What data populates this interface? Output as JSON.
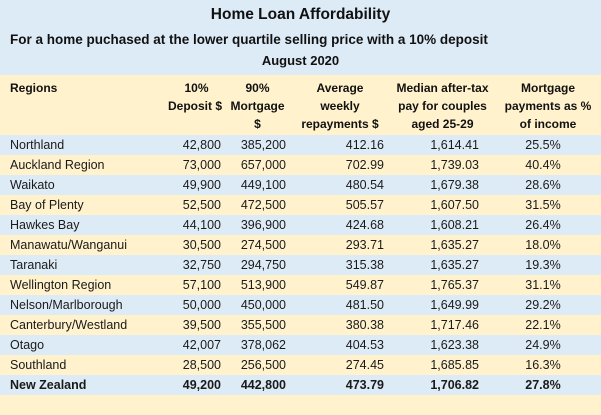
{
  "title": "Home Loan Affordability",
  "subtitle": "For a home puchased at the lower quartile selling price with a 10% deposit",
  "date": "August 2020",
  "colors": {
    "blue_band": "#DDEBF7",
    "cream_band": "#FFF2CC"
  },
  "table": {
    "headers": [
      {
        "lines": [
          "Regions"
        ]
      },
      {
        "lines": [
          "10%",
          "Deposit $"
        ]
      },
      {
        "lines": [
          "90%",
          "Mortgage",
          "$"
        ]
      },
      {
        "lines": [
          "Average",
          "weekly",
          "repayments $"
        ]
      },
      {
        "lines": [
          "Median after-tax",
          "pay for couples",
          "aged 25-29"
        ]
      },
      {
        "lines": [
          "Mortgage",
          "payments as %",
          "of income"
        ]
      }
    ],
    "rows": [
      {
        "region": "Northland",
        "deposit": "42,800",
        "mortgage": "385,200",
        "weekly": "412.16",
        "pay": "1,614.41",
        "pct": "25.5%"
      },
      {
        "region": "Auckland Region",
        "deposit": "73,000",
        "mortgage": "657,000",
        "weekly": "702.99",
        "pay": "1,739.03",
        "pct": "40.4%"
      },
      {
        "region": "Waikato",
        "deposit": "49,900",
        "mortgage": "449,100",
        "weekly": "480.54",
        "pay": "1,679.38",
        "pct": "28.6%"
      },
      {
        "region": "Bay of Plenty",
        "deposit": "52,500",
        "mortgage": "472,500",
        "weekly": "505.57",
        "pay": "1,607.50",
        "pct": "31.5%"
      },
      {
        "region": "Hawkes Bay",
        "deposit": "44,100",
        "mortgage": "396,900",
        "weekly": "424.68",
        "pay": "1,608.21",
        "pct": "26.4%"
      },
      {
        "region": "Manawatu/Wanganui",
        "deposit": "30,500",
        "mortgage": "274,500",
        "weekly": "293.71",
        "pay": "1,635.27",
        "pct": "18.0%"
      },
      {
        "region": "Taranaki",
        "deposit": "32,750",
        "mortgage": "294,750",
        "weekly": "315.38",
        "pay": "1,635.27",
        "pct": "19.3%"
      },
      {
        "region": "Wellington Region",
        "deposit": "57,100",
        "mortgage": "513,900",
        "weekly": "549.87",
        "pay": "1,765.37",
        "pct": "31.1%"
      },
      {
        "region": "Nelson/Marlborough",
        "deposit": "50,000",
        "mortgage": "450,000",
        "weekly": "481.50",
        "pay": "1,649.99",
        "pct": "29.2%"
      },
      {
        "region": "Canterbury/Westland",
        "deposit": "39,500",
        "mortgage": "355,500",
        "weekly": "380.38",
        "pay": "1,717.46",
        "pct": "22.1%"
      },
      {
        "region": "Otago",
        "deposit": "42,007",
        "mortgage": "378,062",
        "weekly": "404.53",
        "pay": "1,623.38",
        "pct": "24.9%"
      },
      {
        "region": "Southland",
        "deposit": "28,500",
        "mortgage": "256,500",
        "weekly": "274.45",
        "pay": "1,685.85",
        "pct": "16.3%"
      }
    ],
    "total": {
      "region": "New Zealand",
      "deposit": "49,200",
      "mortgage": "442,800",
      "weekly": "473.79",
      "pay": "1,706.82",
      "pct": "27.8%"
    }
  }
}
